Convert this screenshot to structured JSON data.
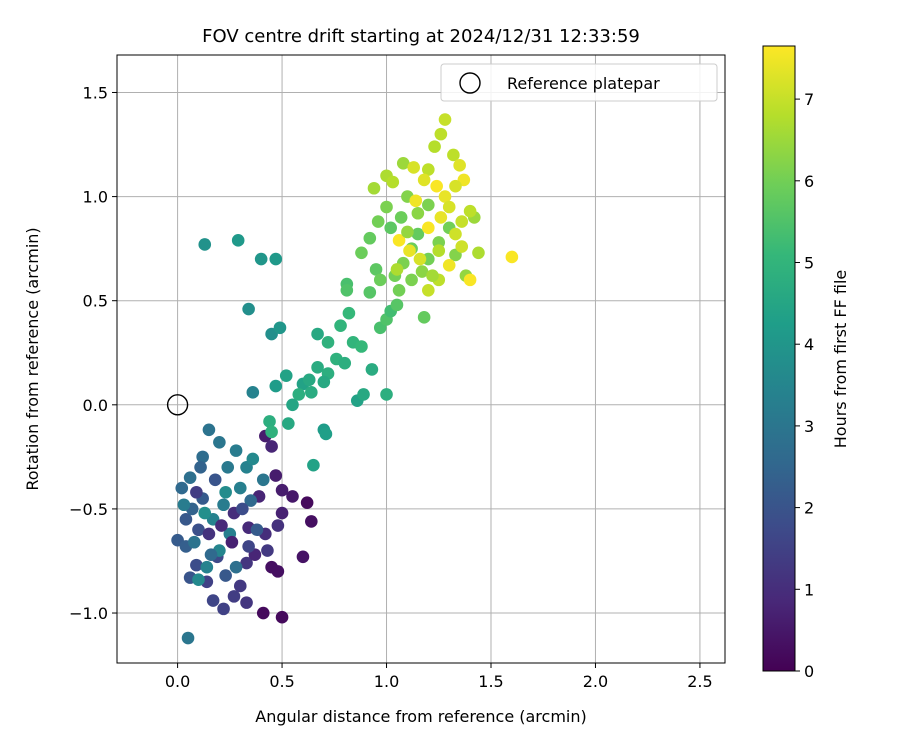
{
  "chart_data": {
    "type": "scatter",
    "title": "FOV centre drift starting at 2024/12/31 12:33:59",
    "xlabel": "Angular distance from reference (arcmin)",
    "ylabel": "Rotation from reference (arcmin)",
    "xlim": [
      -0.29,
      2.62
    ],
    "ylim": [
      -1.24,
      1.68
    ],
    "x_ticks": [
      0.0,
      0.5,
      1.0,
      1.5,
      2.0,
      2.5
    ],
    "x_tick_labels": [
      "0.0",
      "0.5",
      "1.0",
      "1.5",
      "2.0",
      "2.5"
    ],
    "y_ticks": [
      -1.0,
      -0.5,
      0.0,
      0.5,
      1.0,
      1.5
    ],
    "y_tick_labels": [
      "−1.0",
      "−0.5",
      "0.0",
      "0.5",
      "1.0",
      "1.5"
    ],
    "grid": true,
    "legend": {
      "placement": "top-right",
      "entries": [
        {
          "label": "Reference platepar",
          "marker": "open-circle"
        }
      ]
    },
    "reference_point": {
      "x": 0.0,
      "y": 0.0
    },
    "colorbar": {
      "label": "Hours from first FF file",
      "colormap": "viridis",
      "range": [
        0,
        7.65
      ],
      "ticks": [
        0,
        1,
        2,
        3,
        4,
        5,
        6,
        7
      ],
      "tick_labels": [
        "0",
        "1",
        "2",
        "3",
        "4",
        "5",
        "6",
        "7"
      ]
    },
    "colormap_stops": [
      "#440154",
      "#482878",
      "#3e4989",
      "#31688e",
      "#26828e",
      "#1f9e89",
      "#35b779",
      "#6ece58",
      "#b5de2b",
      "#fde725"
    ],
    "points": [
      {
        "x": 0.5,
        "y": -1.02,
        "t": 0.2
      },
      {
        "x": 0.41,
        "y": -1.0,
        "t": 0.2
      },
      {
        "x": 0.45,
        "y": -0.78,
        "t": 0.3
      },
      {
        "x": 0.48,
        "y": -0.8,
        "t": 0.3
      },
      {
        "x": 0.6,
        "y": -0.73,
        "t": 0.4
      },
      {
        "x": 0.64,
        "y": -0.56,
        "t": 0.3
      },
      {
        "x": 0.62,
        "y": -0.47,
        "t": 0.2
      },
      {
        "x": 0.55,
        "y": -0.44,
        "t": 0.5
      },
      {
        "x": 0.5,
        "y": -0.41,
        "t": 0.6
      },
      {
        "x": 0.42,
        "y": -0.15,
        "t": 0.6
      },
      {
        "x": 0.45,
        "y": -0.2,
        "t": 0.8
      },
      {
        "x": 0.47,
        "y": -0.34,
        "t": 0.6
      },
      {
        "x": 0.5,
        "y": -0.52,
        "t": 0.7
      },
      {
        "x": 0.39,
        "y": -0.44,
        "t": 0.8
      },
      {
        "x": 0.34,
        "y": -0.59,
        "t": 0.9
      },
      {
        "x": 0.42,
        "y": -0.62,
        "t": 1.0
      },
      {
        "x": 0.48,
        "y": -0.58,
        "t": 1.1
      },
      {
        "x": 0.27,
        "y": -0.52,
        "t": 1.0
      },
      {
        "x": 0.33,
        "y": -0.76,
        "t": 1.2
      },
      {
        "x": 0.3,
        "y": -0.87,
        "t": 1.3
      },
      {
        "x": 0.33,
        "y": -0.95,
        "t": 1.2
      },
      {
        "x": 0.27,
        "y": -0.92,
        "t": 1.4
      },
      {
        "x": 0.22,
        "y": -0.98,
        "t": 1.5
      },
      {
        "x": 0.17,
        "y": -0.94,
        "t": 1.6
      },
      {
        "x": 0.14,
        "y": -0.85,
        "t": 1.5
      },
      {
        "x": 0.19,
        "y": -0.73,
        "t": 1.7
      },
      {
        "x": 0.09,
        "y": -0.77,
        "t": 1.8
      },
      {
        "x": 0.06,
        "y": -0.83,
        "t": 2.0
      },
      {
        "x": 0.1,
        "y": -0.6,
        "t": 1.9
      },
      {
        "x": 0.04,
        "y": -0.55,
        "t": 2.1
      },
      {
        "x": 0.0,
        "y": -0.65,
        "t": 2.2
      },
      {
        "x": 0.04,
        "y": -0.68,
        "t": 2.3
      },
      {
        "x": 0.07,
        "y": -0.5,
        "t": 2.4
      },
      {
        "x": 0.12,
        "y": -0.45,
        "t": 2.2
      },
      {
        "x": 0.02,
        "y": -0.4,
        "t": 2.6
      },
      {
        "x": 0.06,
        "y": -0.35,
        "t": 2.8
      },
      {
        "x": 0.12,
        "y": -0.25,
        "t": 2.7
      },
      {
        "x": 0.15,
        "y": -0.12,
        "t": 2.9
      },
      {
        "x": 0.2,
        "y": -0.18,
        "t": 3.0
      },
      {
        "x": 0.24,
        "y": -0.3,
        "t": 3.1
      },
      {
        "x": 0.28,
        "y": -0.22,
        "t": 3.2
      },
      {
        "x": 0.3,
        "y": -0.4,
        "t": 3.3
      },
      {
        "x": 0.22,
        "y": -0.48,
        "t": 3.2
      },
      {
        "x": 0.17,
        "y": -0.55,
        "t": 3.4
      },
      {
        "x": 0.25,
        "y": -0.62,
        "t": 3.3
      },
      {
        "x": 0.2,
        "y": -0.7,
        "t": 3.5
      },
      {
        "x": 0.14,
        "y": -0.78,
        "t": 3.4
      },
      {
        "x": 0.1,
        "y": -0.84,
        "t": 3.6
      },
      {
        "x": 0.05,
        "y": -1.12,
        "t": 3.0
      },
      {
        "x": 0.35,
        "y": -0.46,
        "t": 2.6
      },
      {
        "x": 0.38,
        "y": -0.6,
        "t": 2.2
      },
      {
        "x": 0.09,
        "y": -0.42,
        "t": 1.4
      },
      {
        "x": 0.15,
        "y": -0.62,
        "t": 1.1
      },
      {
        "x": 0.21,
        "y": -0.58,
        "t": 0.9
      },
      {
        "x": 0.37,
        "y": -0.72,
        "t": 0.8
      },
      {
        "x": 0.26,
        "y": -0.66,
        "t": 0.7
      },
      {
        "x": 0.31,
        "y": -0.5,
        "t": 1.8
      },
      {
        "x": 0.11,
        "y": -0.3,
        "t": 2.4
      },
      {
        "x": 0.18,
        "y": -0.36,
        "t": 2.0
      },
      {
        "x": 0.33,
        "y": -0.3,
        "t": 3.4
      },
      {
        "x": 0.36,
        "y": -0.26,
        "t": 3.6
      },
      {
        "x": 0.41,
        "y": -0.36,
        "t": 3.0
      },
      {
        "x": 0.08,
        "y": -0.66,
        "t": 2.9
      },
      {
        "x": 0.03,
        "y": -0.48,
        "t": 3.2
      },
      {
        "x": 0.13,
        "y": -0.52,
        "t": 3.8
      },
      {
        "x": 0.23,
        "y": -0.42,
        "t": 3.7
      },
      {
        "x": 0.16,
        "y": -0.72,
        "t": 2.6
      },
      {
        "x": 0.28,
        "y": -0.78,
        "t": 2.8
      },
      {
        "x": 0.23,
        "y": -0.82,
        "t": 2.1
      },
      {
        "x": 0.34,
        "y": -0.68,
        "t": 1.6
      },
      {
        "x": 0.43,
        "y": -0.7,
        "t": 1.3
      },
      {
        "x": 0.13,
        "y": 0.77,
        "t": 3.9
      },
      {
        "x": 0.29,
        "y": 0.79,
        "t": 4.1
      },
      {
        "x": 0.4,
        "y": 0.7,
        "t": 4.0
      },
      {
        "x": 0.47,
        "y": 0.7,
        "t": 4.1
      },
      {
        "x": 0.34,
        "y": 0.46,
        "t": 3.8
      },
      {
        "x": 0.45,
        "y": 0.34,
        "t": 3.8
      },
      {
        "x": 0.49,
        "y": 0.37,
        "t": 4.0
      },
      {
        "x": 0.36,
        "y": 0.06,
        "t": 3.4
      },
      {
        "x": 0.47,
        "y": 0.09,
        "t": 4.2
      },
      {
        "x": 0.52,
        "y": 0.14,
        "t": 4.4
      },
      {
        "x": 0.55,
        "y": 0.0,
        "t": 4.5
      },
      {
        "x": 0.6,
        "y": 0.1,
        "t": 4.4
      },
      {
        "x": 0.63,
        "y": 0.12,
        "t": 4.6
      },
      {
        "x": 0.67,
        "y": 0.18,
        "t": 4.7
      },
      {
        "x": 0.72,
        "y": 0.15,
        "t": 4.8
      },
      {
        "x": 0.76,
        "y": 0.22,
        "t": 4.9
      },
      {
        "x": 0.8,
        "y": 0.2,
        "t": 4.8
      },
      {
        "x": 0.84,
        "y": 0.3,
        "t": 5.0
      },
      {
        "x": 0.88,
        "y": 0.28,
        "t": 5.1
      },
      {
        "x": 0.67,
        "y": 0.34,
        "t": 4.6
      },
      {
        "x": 0.72,
        "y": 0.3,
        "t": 4.9
      },
      {
        "x": 0.78,
        "y": 0.38,
        "t": 5.0
      },
      {
        "x": 0.82,
        "y": 0.44,
        "t": 5.1
      },
      {
        "x": 0.86,
        "y": 0.02,
        "t": 4.4
      },
      {
        "x": 0.89,
        "y": 0.05,
        "t": 4.6
      },
      {
        "x": 0.93,
        "y": 0.17,
        "t": 4.7
      },
      {
        "x": 1.0,
        "y": 0.05,
        "t": 4.8
      },
      {
        "x": 0.7,
        "y": -0.12,
        "t": 4.2
      },
      {
        "x": 0.71,
        "y": -0.14,
        "t": 4.3
      },
      {
        "x": 0.65,
        "y": -0.29,
        "t": 4.4
      },
      {
        "x": 0.53,
        "y": -0.09,
        "t": 4.6
      },
      {
        "x": 0.44,
        "y": -0.08,
        "t": 4.8
      },
      {
        "x": 0.45,
        "y": -0.13,
        "t": 4.9
      },
      {
        "x": 0.64,
        "y": 0.06,
        "t": 4.7
      },
      {
        "x": 0.58,
        "y": 0.05,
        "t": 4.8
      },
      {
        "x": 0.7,
        "y": 0.11,
        "t": 4.6
      },
      {
        "x": 0.81,
        "y": 0.58,
        "t": 5.4
      },
      {
        "x": 0.81,
        "y": 0.55,
        "t": 5.5
      },
      {
        "x": 0.92,
        "y": 0.54,
        "t": 5.6
      },
      {
        "x": 0.97,
        "y": 0.37,
        "t": 5.4
      },
      {
        "x": 1.0,
        "y": 0.41,
        "t": 5.5
      },
      {
        "x": 1.02,
        "y": 0.45,
        "t": 5.3
      },
      {
        "x": 1.05,
        "y": 0.48,
        "t": 5.6
      },
      {
        "x": 1.18,
        "y": 0.42,
        "t": 5.8
      },
      {
        "x": 0.95,
        "y": 0.65,
        "t": 5.7
      },
      {
        "x": 0.97,
        "y": 0.6,
        "t": 5.9
      },
      {
        "x": 1.04,
        "y": 0.62,
        "t": 6.0
      },
      {
        "x": 1.08,
        "y": 0.68,
        "t": 6.1
      },
      {
        "x": 1.12,
        "y": 0.75,
        "t": 5.9
      },
      {
        "x": 1.15,
        "y": 0.82,
        "t": 5.8
      },
      {
        "x": 1.2,
        "y": 0.7,
        "t": 6.0
      },
      {
        "x": 1.25,
        "y": 0.78,
        "t": 6.1
      },
      {
        "x": 1.3,
        "y": 0.85,
        "t": 6.0
      },
      {
        "x": 1.33,
        "y": 0.72,
        "t": 6.2
      },
      {
        "x": 1.38,
        "y": 0.62,
        "t": 6.4
      },
      {
        "x": 1.02,
        "y": 0.85,
        "t": 5.7
      },
      {
        "x": 1.07,
        "y": 0.9,
        "t": 5.9
      },
      {
        "x": 1.0,
        "y": 0.95,
        "t": 6.1
      },
      {
        "x": 0.96,
        "y": 0.88,
        "t": 6.0
      },
      {
        "x": 0.92,
        "y": 0.8,
        "t": 5.8
      },
      {
        "x": 0.88,
        "y": 0.73,
        "t": 5.9
      },
      {
        "x": 1.1,
        "y": 1.0,
        "t": 6.2
      },
      {
        "x": 1.15,
        "y": 0.92,
        "t": 6.3
      },
      {
        "x": 1.2,
        "y": 0.96,
        "t": 6.1
      },
      {
        "x": 1.42,
        "y": 0.9,
        "t": 6.5
      },
      {
        "x": 1.06,
        "y": 0.55,
        "t": 6.0
      },
      {
        "x": 1.12,
        "y": 0.6,
        "t": 6.1
      },
      {
        "x": 1.17,
        "y": 0.64,
        "t": 6.3
      },
      {
        "x": 0.94,
        "y": 1.04,
        "t": 6.6
      },
      {
        "x": 1.0,
        "y": 1.1,
        "t": 6.7
      },
      {
        "x": 1.03,
        "y": 1.07,
        "t": 6.8
      },
      {
        "x": 1.08,
        "y": 1.16,
        "t": 6.5
      },
      {
        "x": 1.13,
        "y": 1.14,
        "t": 7.2
      },
      {
        "x": 1.2,
        "y": 1.13,
        "t": 6.9
      },
      {
        "x": 1.23,
        "y": 1.24,
        "t": 6.8
      },
      {
        "x": 1.26,
        "y": 1.3,
        "t": 6.9
      },
      {
        "x": 1.28,
        "y": 1.37,
        "t": 7.0
      },
      {
        "x": 1.32,
        "y": 1.2,
        "t": 6.9
      },
      {
        "x": 1.35,
        "y": 1.15,
        "t": 7.3
      },
      {
        "x": 1.37,
        "y": 1.08,
        "t": 7.5
      },
      {
        "x": 1.33,
        "y": 1.05,
        "t": 7.2
      },
      {
        "x": 1.28,
        "y": 1.0,
        "t": 7.4
      },
      {
        "x": 1.24,
        "y": 1.05,
        "t": 7.6
      },
      {
        "x": 1.18,
        "y": 1.08,
        "t": 7.3
      },
      {
        "x": 1.14,
        "y": 0.98,
        "t": 7.5
      },
      {
        "x": 1.2,
        "y": 0.85,
        "t": 7.6
      },
      {
        "x": 1.26,
        "y": 0.9,
        "t": 7.4
      },
      {
        "x": 1.3,
        "y": 0.95,
        "t": 7.2
      },
      {
        "x": 1.36,
        "y": 0.88,
        "t": 7.0
      },
      {
        "x": 1.4,
        "y": 0.93,
        "t": 6.9
      },
      {
        "x": 1.33,
        "y": 0.82,
        "t": 7.1
      },
      {
        "x": 1.06,
        "y": 0.79,
        "t": 7.6
      },
      {
        "x": 1.11,
        "y": 0.74,
        "t": 7.4
      },
      {
        "x": 1.16,
        "y": 0.7,
        "t": 7.2
      },
      {
        "x": 1.2,
        "y": 0.55,
        "t": 7.0
      },
      {
        "x": 1.25,
        "y": 0.6,
        "t": 6.9
      },
      {
        "x": 1.3,
        "y": 0.67,
        "t": 7.5
      },
      {
        "x": 1.4,
        "y": 0.6,
        "t": 7.6
      },
      {
        "x": 1.6,
        "y": 0.71,
        "t": 7.6
      },
      {
        "x": 1.44,
        "y": 0.73,
        "t": 6.7
      },
      {
        "x": 1.22,
        "y": 0.62,
        "t": 6.6
      },
      {
        "x": 1.05,
        "y": 0.65,
        "t": 6.7
      },
      {
        "x": 1.1,
        "y": 0.83,
        "t": 6.4
      },
      {
        "x": 1.25,
        "y": 0.74,
        "t": 6.8
      },
      {
        "x": 1.36,
        "y": 0.76,
        "t": 7.1
      }
    ]
  }
}
